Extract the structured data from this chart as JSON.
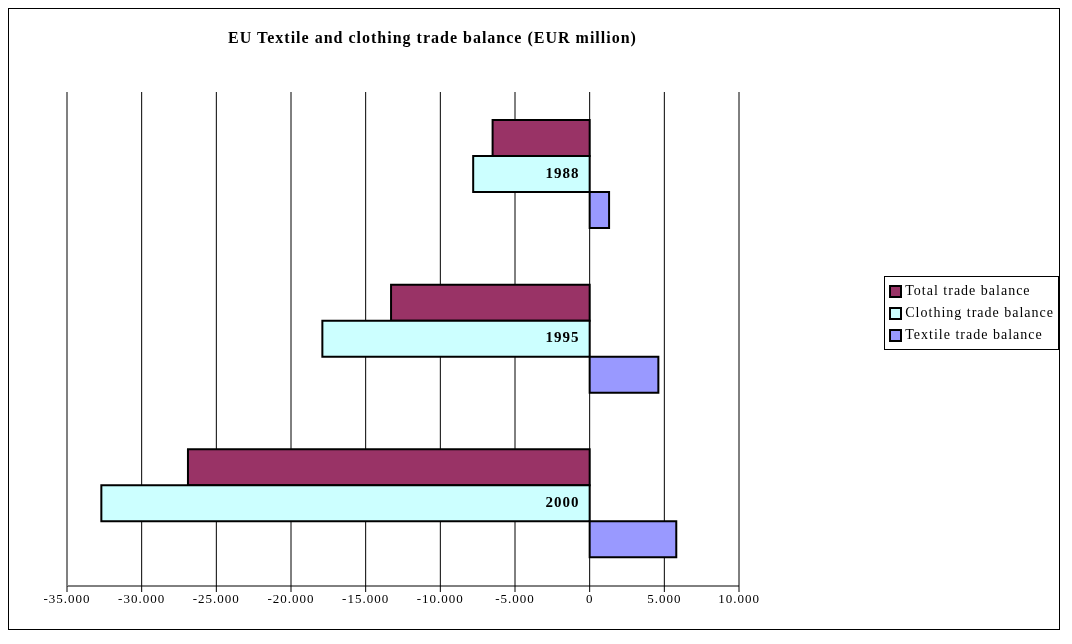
{
  "chart_data": {
    "type": "bar",
    "orientation": "horizontal",
    "title": "EU Textile and clothing trade balance (EUR million)",
    "categories": [
      "1988",
      "1995",
      "2000"
    ],
    "series": [
      {
        "name": "Total trade balance",
        "color": "#993366",
        "values": [
          -6500,
          -13300,
          -26900
        ]
      },
      {
        "name": "Clothing trade balance",
        "color": "#ccffff",
        "values": [
          -7800,
          -17900,
          -32700
        ]
      },
      {
        "name": "Textile trade balance",
        "color": "#9999ff",
        "values": [
          1300,
          4600,
          5800
        ]
      }
    ],
    "xlim": [
      -35000,
      10000
    ],
    "xticks": [
      {
        "value": -35000,
        "label": "-35.000"
      },
      {
        "value": -30000,
        "label": "-30.000"
      },
      {
        "value": -25000,
        "label": "-25.000"
      },
      {
        "value": -20000,
        "label": "-20.000"
      },
      {
        "value": -15000,
        "label": "-15.000"
      },
      {
        "value": -10000,
        "label": "-10.000"
      },
      {
        "value": -5000,
        "label": "-5.000"
      },
      0,
      {
        "value": 5000,
        "label": "5.000"
      },
      {
        "value": 10000,
        "label": "10.000"
      }
    ],
    "grid": "x",
    "legend": "right"
  }
}
